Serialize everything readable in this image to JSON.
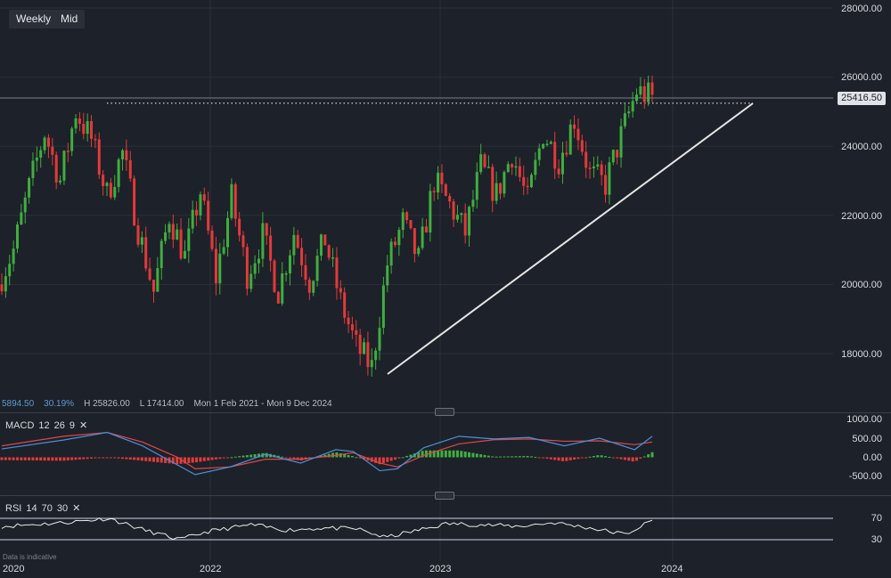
{
  "toolbar": {
    "timeframe_label": "Weekly",
    "price_type_label": "Mid"
  },
  "stats": {
    "change": "5894.50",
    "change_pct": "30.19%",
    "high": "H 25826.00",
    "low": "L 17414.00",
    "range": "Mon 1 Feb 2021 - Mon 9 Dec 2024"
  },
  "current_price": "25416.50",
  "macd": {
    "name": "MACD",
    "fast": "12",
    "slow": "26",
    "signal": "9",
    "close": "✕",
    "ticks": [
      "1000.00",
      "500.00",
      "0.00",
      "-500.00"
    ]
  },
  "rsi": {
    "name": "RSI",
    "period": "14",
    "upper": "70",
    "lower": "30",
    "close": "✕",
    "ticks": [
      "70",
      "30"
    ]
  },
  "footnote": "Data is indicative",
  "colors": {
    "background": "#1d2129",
    "up": "#3fae3f",
    "down": "#e23a3a",
    "macd_line": "#4a90d9",
    "signal_line": "#e04848",
    "trendline": "#e6e6e6"
  },
  "chart_data": {
    "type": "candlestick",
    "interval": "weekly",
    "x_ticks": [
      "2020",
      "2022",
      "2023",
      "2024"
    ],
    "y_ticks": [
      "28000.00",
      "26000.00",
      "24000.00",
      "22000.00",
      "20000.00",
      "18000.00"
    ],
    "ylim": [
      16500,
      28200
    ],
    "grid": true,
    "high": 25826,
    "low": 17414,
    "resistance_level": 25400,
    "trendline": {
      "from": [
        "2022-10",
        17600
      ],
      "to": [
        "2024-05",
        25150
      ]
    },
    "price_path": [
      [
        20000,
        21000
      ],
      [
        21000,
        22800
      ],
      [
        22800,
        24400
      ],
      [
        24400,
        23000
      ],
      [
        23000,
        25000
      ],
      [
        25000,
        24200
      ],
      [
        24200,
        22600
      ],
      [
        22600,
        23800
      ],
      [
        23800,
        21600
      ],
      [
        21600,
        19800
      ],
      [
        19800,
        22000
      ],
      [
        22000,
        20800
      ],
      [
        20800,
        22700
      ],
      [
        22700,
        20200
      ],
      [
        20200,
        22500
      ],
      [
        22500,
        20300
      ],
      [
        20300,
        21400
      ],
      [
        21400,
        19800
      ],
      [
        19800,
        21500
      ],
      [
        21500,
        20100
      ],
      [
        20100,
        21300
      ],
      [
        21300,
        19500
      ],
      [
        19500,
        18200
      ],
      [
        18200,
        17600
      ],
      [
        17600,
        20600
      ],
      [
        20600,
        21800
      ],
      [
        21800,
        20700
      ],
      [
        20700,
        23000
      ],
      [
        23000,
        22300
      ],
      [
        22300,
        21500
      ],
      [
        21500,
        23400
      ],
      [
        23400,
        22600
      ],
      [
        22600,
        23800
      ],
      [
        23800,
        22400
      ],
      [
        22400,
        24400
      ],
      [
        24400,
        23600
      ],
      [
        23600,
        24800
      ],
      [
        24800,
        23200
      ],
      [
        23200,
        22900
      ],
      [
        22900,
        24300
      ],
      [
        24300,
        25600
      ],
      [
        25600,
        25400
      ]
    ],
    "macd_line": [
      [
        0,
        220
      ],
      [
        0.07,
        450
      ],
      [
        0.12,
        650
      ],
      [
        0.16,
        300
      ],
      [
        0.2,
        -200
      ],
      [
        0.22,
        -450
      ],
      [
        0.26,
        -250
      ],
      [
        0.3,
        80
      ],
      [
        0.34,
        -150
      ],
      [
        0.38,
        200
      ],
      [
        0.4,
        150
      ],
      [
        0.43,
        -350
      ],
      [
        0.45,
        -300
      ],
      [
        0.48,
        250
      ],
      [
        0.52,
        550
      ],
      [
        0.56,
        480
      ],
      [
        0.6,
        520
      ],
      [
        0.64,
        300
      ],
      [
        0.68,
        500
      ],
      [
        0.72,
        200
      ],
      [
        0.74,
        550
      ]
    ],
    "signal_line": [
      [
        0,
        300
      ],
      [
        0.07,
        550
      ],
      [
        0.12,
        650
      ],
      [
        0.16,
        400
      ],
      [
        0.2,
        0
      ],
      [
        0.22,
        -300
      ],
      [
        0.26,
        -250
      ],
      [
        0.3,
        -50
      ],
      [
        0.34,
        -50
      ],
      [
        0.38,
        50
      ],
      [
        0.4,
        120
      ],
      [
        0.43,
        -150
      ],
      [
        0.45,
        -250
      ],
      [
        0.48,
        50
      ],
      [
        0.52,
        350
      ],
      [
        0.56,
        460
      ],
      [
        0.6,
        480
      ],
      [
        0.64,
        420
      ],
      [
        0.68,
        430
      ],
      [
        0.72,
        330
      ],
      [
        0.74,
        400
      ]
    ],
    "rsi_line": [
      [
        0,
        55
      ],
      [
        0.07,
        62
      ],
      [
        0.12,
        70
      ],
      [
        0.16,
        48
      ],
      [
        0.2,
        30
      ],
      [
        0.23,
        45
      ],
      [
        0.28,
        58
      ],
      [
        0.32,
        48
      ],
      [
        0.36,
        52
      ],
      [
        0.4,
        50
      ],
      [
        0.43,
        34
      ],
      [
        0.46,
        45
      ],
      [
        0.5,
        60
      ],
      [
        0.54,
        58
      ],
      [
        0.58,
        55
      ],
      [
        0.62,
        62
      ],
      [
        0.66,
        52
      ],
      [
        0.7,
        40
      ],
      [
        0.73,
        66
      ]
    ]
  }
}
